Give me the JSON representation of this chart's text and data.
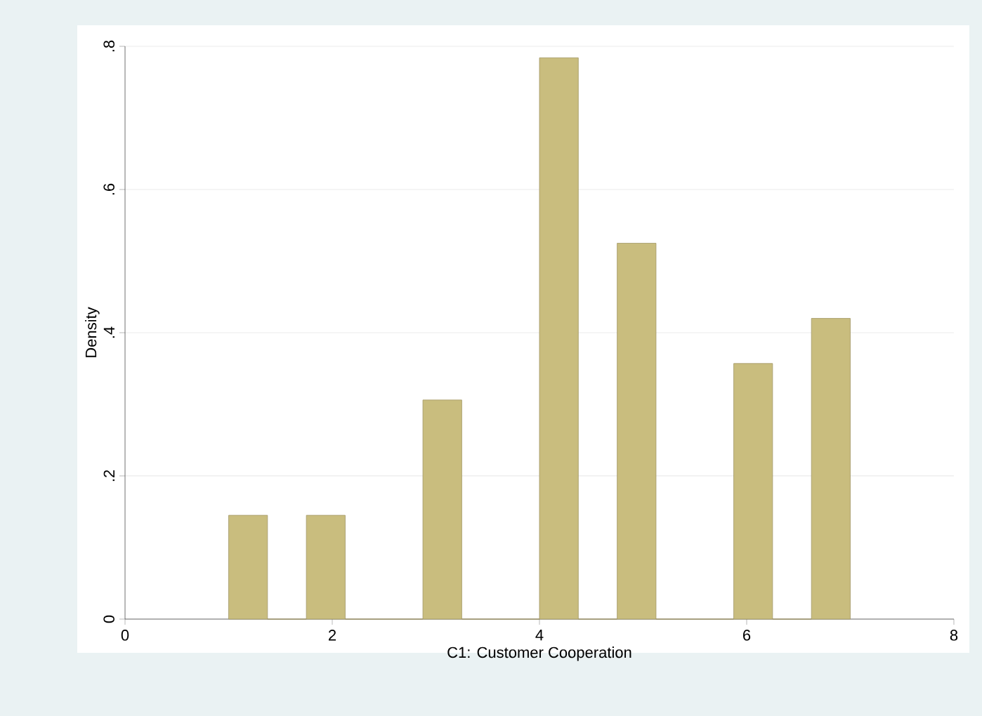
{
  "chart_data": {
    "type": "histogram",
    "xlabel": "C1: Customer Cooperation",
    "ylabel": "Density",
    "bins": [
      1,
      1.375,
      1.75,
      2.125,
      2.5,
      2.875,
      3.25,
      3.625,
      4,
      4.375,
      4.75,
      5.125,
      5.5,
      5.875,
      6.25,
      6.625,
      7
    ],
    "values": [
      0.145,
      0,
      0.145,
      0,
      0,
      0.306,
      0,
      0,
      0.784,
      0,
      0.525,
      0,
      0,
      0.357,
      0,
      0.42
    ],
    "color": "#c9bd7e",
    "xlim": [
      0,
      8
    ],
    "xticks": [
      0,
      2,
      4,
      6,
      8
    ],
    "ylim": [
      0,
      0.8
    ],
    "yticks": [
      {
        "value": 0,
        "label": "0"
      },
      {
        "value": 0.2,
        "label": ".2"
      },
      {
        "value": 0.4,
        "label": ".4"
      },
      {
        "value": 0.6,
        "label": ".6"
      },
      {
        "value": 0.8,
        "label": ".8"
      }
    ],
    "grid": "y"
  }
}
